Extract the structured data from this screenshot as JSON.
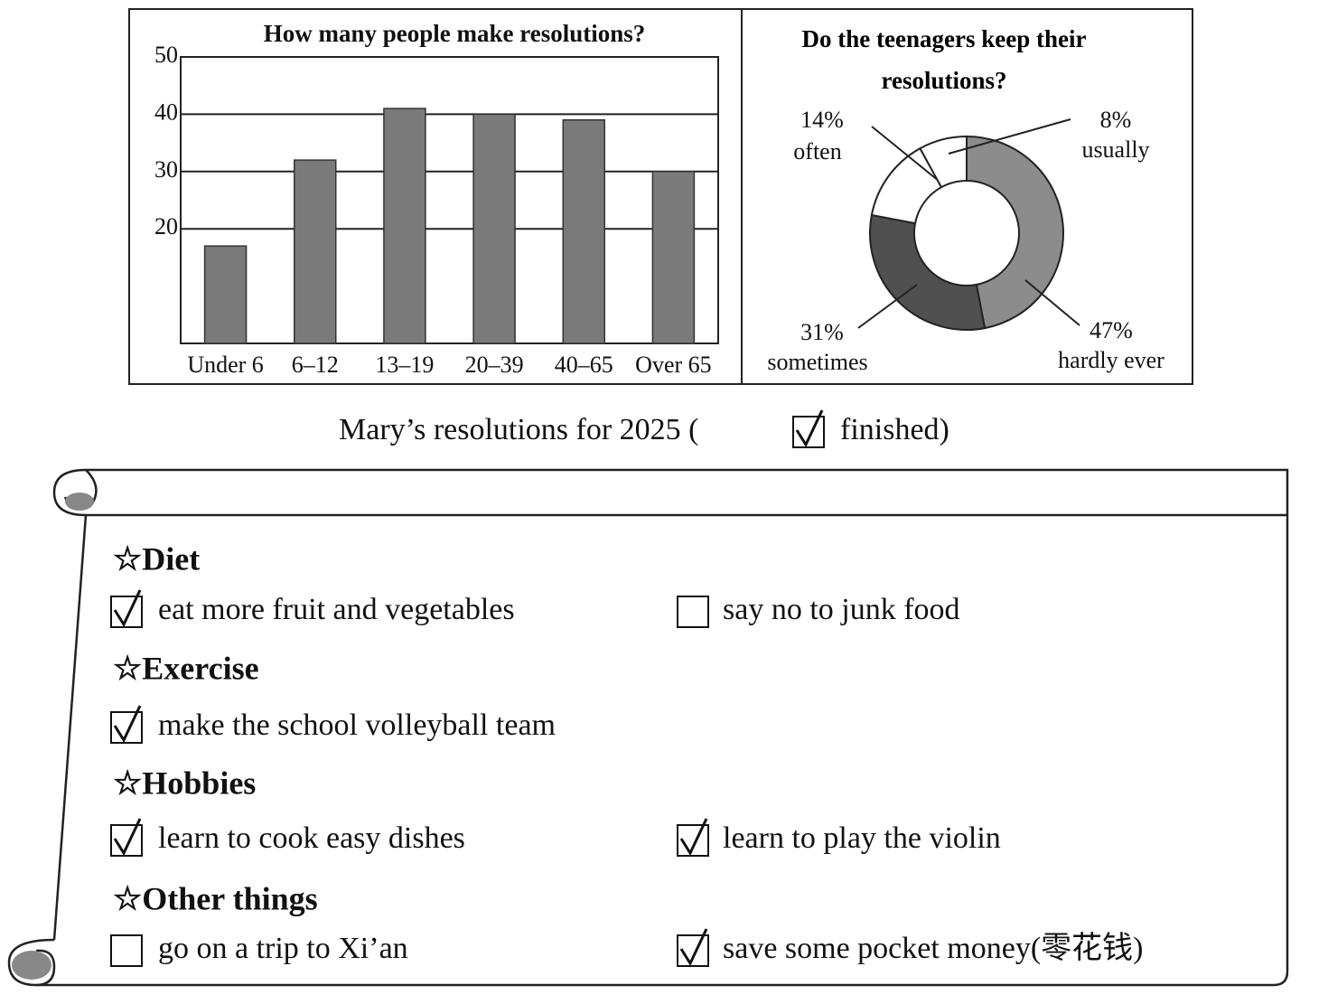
{
  "chart_data": [
    {
      "type": "bar",
      "title": "How many people make resolutions?",
      "categories": [
        "Under 6",
        "6–12",
        "13–19",
        "20–39",
        "40–65",
        "Over 65"
      ],
      "values": [
        17,
        32,
        41,
        40,
        39,
        30
      ],
      "color": "#7a7a7a",
      "ylim": [
        0,
        50
      ],
      "yticks": [
        20,
        30,
        40,
        50
      ],
      "grid": true
    },
    {
      "type": "donut",
      "title": "Do the teenagers keep their resolutions?",
      "categories": [
        "hardly ever",
        "sometimes",
        "often",
        "usually"
      ],
      "values": [
        47,
        31,
        14,
        8
      ],
      "value_labels": [
        "47%",
        "31%",
        "14%",
        "8%"
      ],
      "colors": [
        "#8c8c8c",
        "#505050",
        "#ffffff",
        "#ffffff"
      ]
    }
  ],
  "caption": {
    "before": "Mary’s resolutions for 2025 (",
    "after": "finished)",
    "checked": true
  },
  "sections": [
    {
      "heading": "☆Diet",
      "items": [
        {
          "text": "eat more fruit and vegetables",
          "checked": true
        },
        {
          "text": "say no to junk food",
          "checked": false
        }
      ]
    },
    {
      "heading": "☆Exercise",
      "items": [
        {
          "text": "make the school volleyball team",
          "checked": true
        }
      ]
    },
    {
      "heading": "☆Hobbies",
      "items": [
        {
          "text": "learn to cook easy dishes",
          "checked": true
        },
        {
          "text": "learn to play the violin",
          "checked": true
        }
      ]
    },
    {
      "heading": "☆Other things",
      "items": [
        {
          "text": "go on a trip to Xi’an",
          "checked": false
        },
        {
          "text": "save some pocket money(零花钱)",
          "checked": true
        }
      ]
    }
  ]
}
